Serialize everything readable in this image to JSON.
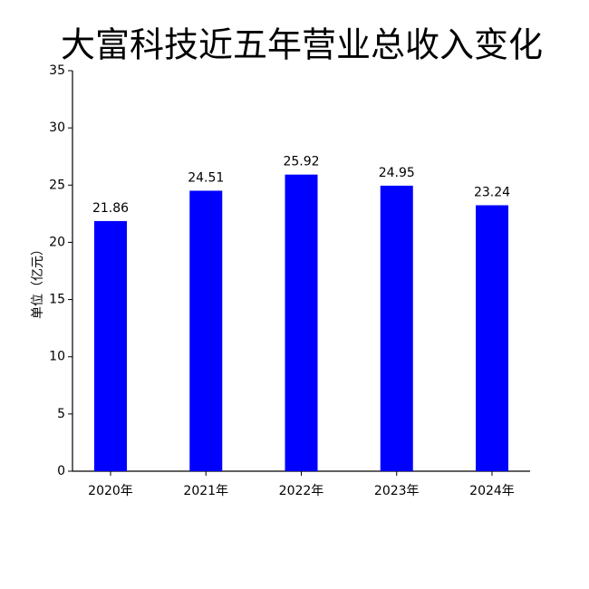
{
  "chart_data": {
    "type": "bar",
    "title": "大富科技近五年营业总收入变化",
    "y_label": "单位（亿元）",
    "categories": [
      "2020年",
      "2021年",
      "2022年",
      "2023年",
      "2024年"
    ],
    "values": [
      21.86,
      24.51,
      25.92,
      24.95,
      23.24
    ],
    "color": "#0000ff",
    "ylim": [
      0,
      35
    ],
    "yticks": [
      0,
      5,
      10,
      15,
      20,
      25,
      30,
      35
    ],
    "grid": false
  }
}
